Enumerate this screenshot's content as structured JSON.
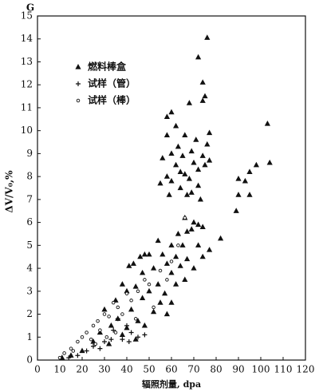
{
  "chart_data": {
    "type": "scatter",
    "corner_label": "G",
    "xlabel": "辐照剂量, dpa",
    "ylabel": "ΔV/V₀,%",
    "xlim": [
      0,
      120
    ],
    "ylim": [
      0,
      15
    ],
    "xticks": [
      0,
      10,
      20,
      30,
      40,
      50,
      60,
      70,
      80,
      90,
      100,
      110,
      120
    ],
    "yticks": [
      0,
      1,
      2,
      3,
      4,
      5,
      6,
      7,
      8,
      9,
      10,
      11,
      12,
      13,
      14,
      15
    ],
    "grid": false,
    "legend": "upper left",
    "series": [
      {
        "name": "燃料棒盒",
        "marker": "triangle",
        "color": "#111111",
        "x": [
          76,
          72,
          74,
          75,
          74,
          68,
          60,
          58,
          62,
          77,
          58,
          66,
          71,
          76,
          63,
          60,
          69,
          74,
          56,
          65,
          77,
          62,
          70,
          75,
          72,
          64,
          58,
          66,
          68,
          60,
          55,
          72,
          64,
          67,
          59,
          73,
          69,
          103,
          104,
          98,
          90,
          95,
          93,
          90,
          95,
          89,
          66,
          70,
          72,
          74,
          67,
          63,
          69,
          82,
          54,
          60,
          65,
          72,
          77,
          48,
          50,
          46,
          56,
          62,
          67,
          74,
          43,
          41,
          58,
          64,
          70,
          52,
          47,
          60,
          66,
          38,
          44,
          54,
          62,
          40,
          50,
          57,
          35,
          47,
          55,
          60,
          30,
          42,
          52,
          58,
          36,
          45,
          33,
          40,
          48,
          28,
          38,
          44,
          25,
          32,
          20,
          15,
          11
        ],
        "y": [
          14.05,
          13.2,
          12.1,
          11.5,
          11.3,
          11.2,
          10.8,
          10.6,
          10.2,
          9.9,
          9.8,
          9.8,
          9.6,
          9.4,
          9.3,
          9.0,
          9.1,
          8.9,
          8.8,
          8.9,
          8.7,
          8.5,
          8.6,
          8.5,
          8.3,
          8.2,
          8.0,
          8.1,
          7.9,
          7.8,
          7.7,
          7.6,
          7.5,
          7.2,
          7.2,
          7.0,
          7.3,
          10.3,
          8.6,
          8.5,
          7.9,
          8.2,
          7.8,
          7.2,
          7.2,
          6.5,
          6.2,
          6.0,
          5.9,
          5.8,
          5.6,
          5.5,
          5.7,
          5.3,
          5.2,
          5.0,
          5.0,
          5.0,
          4.8,
          4.6,
          4.6,
          4.5,
          4.6,
          4.5,
          4.4,
          4.5,
          4.2,
          4.1,
          4.2,
          4.1,
          4.0,
          4.0,
          3.8,
          3.8,
          3.5,
          3.3,
          3.2,
          3.3,
          3.3,
          3.0,
          3.0,
          2.9,
          2.6,
          2.7,
          2.5,
          2.5,
          2.2,
          2.2,
          2.1,
          2.0,
          1.8,
          1.7,
          1.5,
          1.4,
          1.5,
          1.2,
          1.1,
          0.9,
          0.8,
          0.7,
          0.4,
          0.2,
          0.1
        ]
      },
      {
        "name": "试样（管）",
        "marker": "plus",
        "color": "#111111",
        "x": [
          36,
          40,
          34,
          42,
          38,
          30,
          45,
          28,
          22,
          25,
          33,
          18,
          14,
          48,
          41
        ],
        "y": [
          1.8,
          1.5,
          1.3,
          1.2,
          0.9,
          0.8,
          1.0,
          0.5,
          0.4,
          0.6,
          0.9,
          0.2,
          0.1,
          1.1,
          0.8
        ]
      },
      {
        "name": "试样（棒）",
        "marker": "circle",
        "color": "#111111",
        "x": [
          66,
          63,
          60,
          48,
          45,
          40,
          34,
          30,
          27,
          25,
          32,
          36,
          22,
          20,
          18,
          15,
          12,
          10,
          24,
          28,
          38,
          42,
          50,
          55,
          16,
          26,
          31,
          35,
          44,
          52,
          58
        ],
        "y": [
          6.2,
          5.0,
          4.3,
          3.5,
          3.0,
          2.9,
          2.5,
          2.0,
          1.7,
          1.5,
          1.9,
          2.3,
          1.2,
          1.0,
          0.8,
          0.5,
          0.3,
          0.1,
          0.9,
          1.3,
          2.0,
          2.6,
          3.3,
          3.9,
          0.4,
          0.7,
          1.0,
          1.2,
          1.8,
          2.3,
          3.5
        ]
      }
    ]
  }
}
